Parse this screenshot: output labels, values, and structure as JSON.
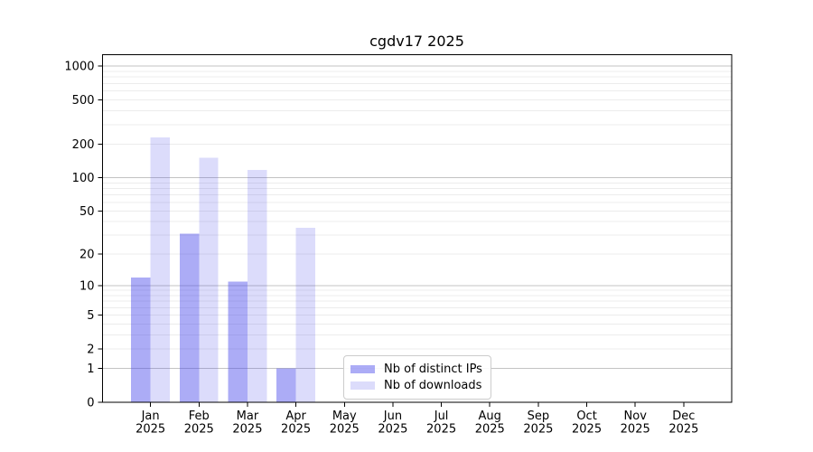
{
  "title": "cgdv17 2025",
  "chart_data": {
    "type": "bar",
    "title": "cgdv17 2025",
    "yscale": "log1p",
    "ylim": [
      0,
      1260
    ],
    "yticks": [
      0,
      1,
      2,
      5,
      10,
      20,
      50,
      100,
      200,
      500,
      1000
    ],
    "x_months": [
      "Jan",
      "Feb",
      "Mar",
      "Apr",
      "May",
      "Jun",
      "Jul",
      "Aug",
      "Sep",
      "Oct",
      "Nov",
      "Dec"
    ],
    "x_year": "2025",
    "series": [
      {
        "name": "Nb of distinct IPs",
        "color": "#4646eb",
        "alpha": 0.45,
        "values": [
          12,
          31,
          11,
          1,
          0,
          0,
          0,
          0,
          0,
          0,
          0,
          0
        ]
      },
      {
        "name": "Nb of downloads",
        "color": "#4646eb",
        "alpha": 0.19,
        "values": [
          230,
          152,
          118,
          35,
          0,
          0,
          0,
          0,
          0,
          0,
          0,
          0
        ]
      }
    ],
    "grid": "on",
    "legend_position": "lower-center"
  },
  "colors": {
    "background": "#ffffff",
    "spine": "#000000",
    "grid_major": "#c3c3c3",
    "grid_minor": "#ececec",
    "tick_text": "#000000"
  }
}
